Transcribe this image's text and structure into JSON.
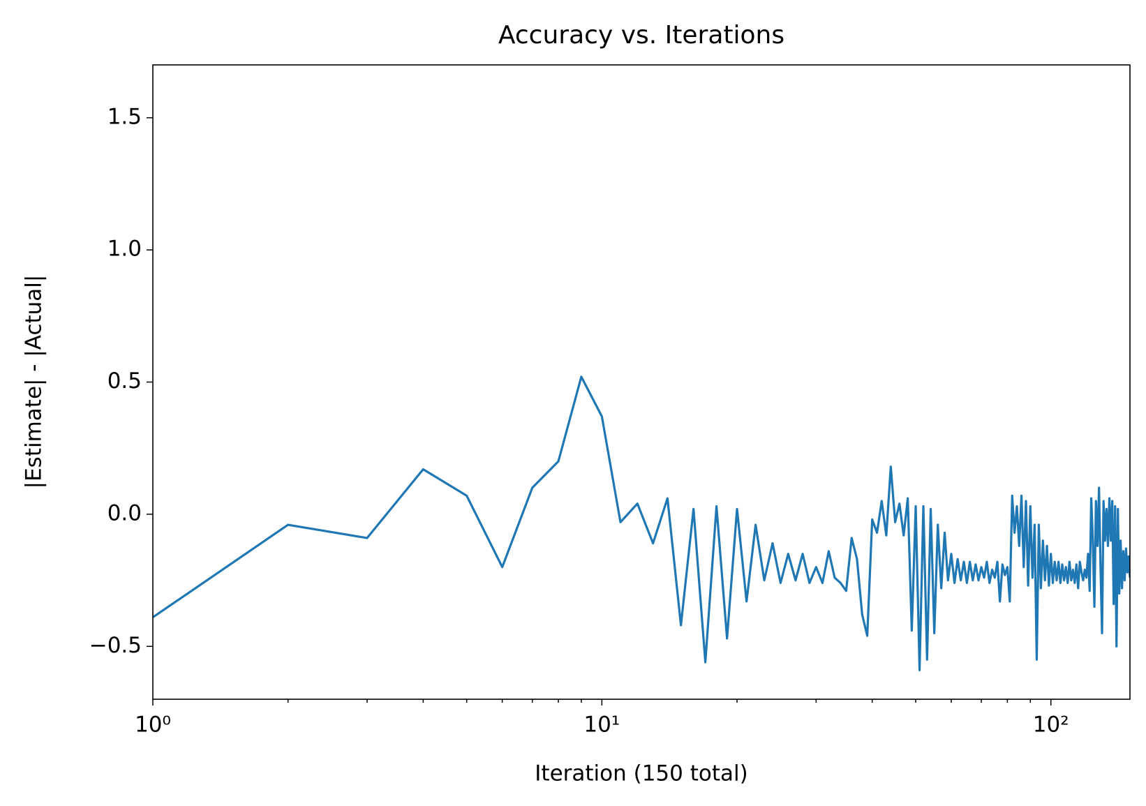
{
  "chart_data": {
    "type": "line",
    "title": "Accuracy vs. Iterations",
    "x_label": "Iteration (150 total)",
    "y_label": "|Estimate| - |Actual|",
    "x_scale": "log",
    "color": "#1f77b4",
    "xlim": [
      1,
      150
    ],
    "ylim": [
      -0.7,
      1.7
    ],
    "xticks": [
      {
        "value": 1,
        "label": "10⁰"
      },
      {
        "value": 10,
        "label": "10¹"
      },
      {
        "value": 100,
        "label": "10²"
      }
    ],
    "xminorticks": [
      2,
      3,
      4,
      5,
      6,
      7,
      8,
      9,
      20,
      30,
      40,
      50,
      60,
      70,
      80,
      90
    ],
    "yticks": [
      {
        "value": -0.5,
        "label": "−0.5"
      },
      {
        "value": 0,
        "label": "0.0"
      },
      0.5,
      {
        "value": 1,
        "label": "1.0"
      },
      1.5
    ],
    "x": [
      1,
      2,
      3,
      4,
      5,
      6,
      7,
      8,
      9,
      10,
      11,
      12,
      13,
      14,
      15,
      16,
      17,
      18,
      19,
      20,
      21,
      22,
      23,
      24,
      25,
      26,
      27,
      28,
      29,
      30,
      31,
      32,
      33,
      34,
      35,
      36,
      37,
      38,
      39,
      40,
      41,
      42,
      43,
      44,
      45,
      46,
      47,
      48,
      49,
      50,
      51,
      52,
      53,
      54,
      55,
      56,
      57,
      58,
      59,
      60,
      61,
      62,
      63,
      64,
      65,
      66,
      67,
      68,
      69,
      70,
      71,
      72,
      73,
      74,
      75,
      76,
      77,
      78,
      79,
      80,
      81,
      82,
      83,
      84,
      85,
      86,
      87,
      88,
      89,
      90,
      91,
      92,
      93,
      94,
      95,
      96,
      97,
      98,
      99,
      100,
      101,
      102,
      103,
      104,
      105,
      106,
      107,
      108,
      109,
      110,
      111,
      112,
      113,
      114,
      115,
      116,
      117,
      118,
      119,
      120,
      121,
      122,
      123,
      124,
      125,
      126,
      127,
      128,
      129,
      130,
      131,
      132,
      133,
      134,
      135,
      136,
      137,
      138,
      139,
      140,
      141,
      142,
      143,
      144,
      145,
      146,
      147,
      148,
      149,
      150
    ],
    "values": [
      -0.39,
      -0.04,
      -0.09,
      0.17,
      0.07,
      -0.2,
      0.1,
      0.2,
      0.52,
      0.37,
      -0.03,
      0.04,
      -0.11,
      0.06,
      -0.42,
      0.02,
      -0.56,
      0.03,
      -0.47,
      0.02,
      -0.33,
      -0.04,
      -0.25,
      -0.11,
      -0.26,
      -0.15,
      -0.25,
      -0.15,
      -0.26,
      -0.2,
      -0.26,
      -0.14,
      -0.24,
      -0.26,
      -0.29,
      -0.09,
      -0.17,
      -0.38,
      -0.46,
      -0.02,
      -0.07,
      0.05,
      -0.08,
      0.18,
      -0.03,
      0.04,
      -0.08,
      0.06,
      -0.44,
      0.03,
      -0.59,
      0.03,
      -0.55,
      0.02,
      -0.45,
      -0.04,
      -0.28,
      -0.07,
      -0.25,
      -0.15,
      -0.26,
      -0.17,
      -0.25,
      -0.18,
      -0.26,
      -0.18,
      -0.25,
      -0.19,
      -0.25,
      -0.2,
      -0.24,
      -0.18,
      -0.26,
      -0.21,
      -0.24,
      -0.18,
      -0.33,
      -0.19,
      -0.23,
      -0.2,
      -0.33,
      0.07,
      -0.07,
      0.03,
      -0.12,
      0.07,
      -0.2,
      0.05,
      -0.27,
      0.03,
      -0.24,
      -0.04,
      -0.55,
      -0.04,
      -0.28,
      -0.1,
      -0.25,
      -0.12,
      -0.27,
      -0.15,
      -0.26,
      -0.18,
      -0.25,
      -0.18,
      -0.26,
      -0.19,
      -0.25,
      -0.2,
      -0.26,
      -0.18,
      -0.25,
      -0.21,
      -0.26,
      -0.19,
      -0.28,
      -0.18,
      -0.22,
      -0.25,
      -0.21,
      -0.24,
      -0.15,
      -0.29,
      0.06,
      -0.1,
      -0.35,
      0.05,
      -0.12,
      0.1,
      -0.2,
      -0.45,
      0.05,
      -0.1,
      0.02,
      -0.12,
      0.06,
      -0.1,
      0.05,
      -0.34,
      0.03,
      -0.5,
      0.02,
      -0.3,
      -0.1,
      -0.28,
      -0.14,
      -0.25,
      -0.13,
      -0.22,
      -0.16,
      -0.24
    ]
  }
}
